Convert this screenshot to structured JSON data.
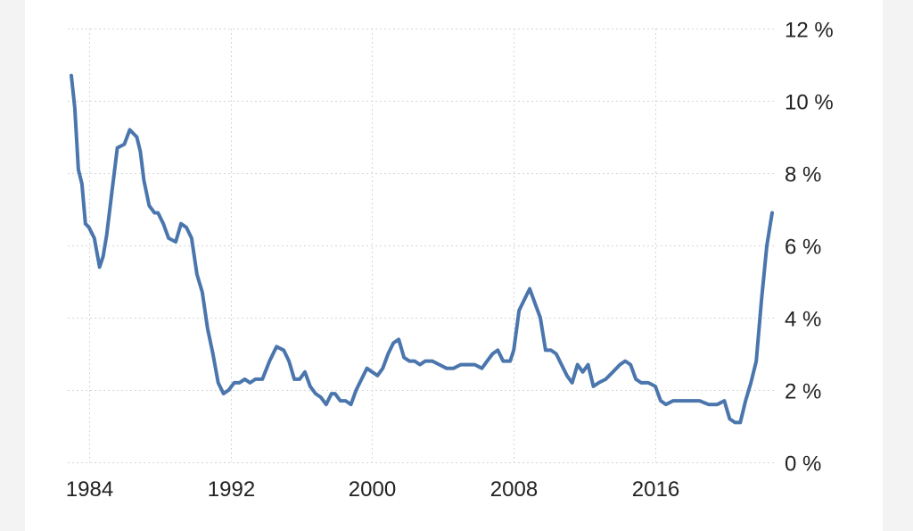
{
  "chart_data": {
    "type": "line",
    "title": "",
    "xlabel": "",
    "ylabel": "",
    "xlim": [
      1982.8,
      2022.7
    ],
    "ylim": [
      0,
      12
    ],
    "x_ticks": [
      {
        "value": 1984,
        "label": "1984"
      },
      {
        "value": 1992,
        "label": "1992"
      },
      {
        "value": 2000,
        "label": "2000"
      },
      {
        "value": 2008,
        "label": "2008"
      },
      {
        "value": 2016,
        "label": "2016"
      }
    ],
    "y_ticks": [
      {
        "value": 0,
        "label": "0 %"
      },
      {
        "value": 2,
        "label": "2 %"
      },
      {
        "value": 4,
        "label": "4 %"
      },
      {
        "value": 6,
        "label": "6 %"
      },
      {
        "value": 8,
        "label": "8 %"
      },
      {
        "value": 10,
        "label": "10 %"
      },
      {
        "value": 12,
        "label": "12 %"
      }
    ],
    "y_axis_side": "right",
    "grid": true,
    "legend": false,
    "color": "#4a76ad",
    "series": [
      {
        "x": [
          1983.0,
          1983.2,
          1983.4,
          1983.6,
          1983.8,
          1984.0,
          1984.3,
          1984.6,
          1984.8,
          1985.0,
          1985.3,
          1985.6,
          1986.0,
          1986.3,
          1986.7,
          1986.9,
          1987.1,
          1987.4,
          1987.7,
          1987.9,
          1988.2,
          1988.5,
          1988.9,
          1989.2,
          1989.5,
          1989.8,
          1990.1,
          1990.4,
          1990.7,
          1991.0,
          1991.3,
          1991.6,
          1991.9,
          1992.2,
          1992.5,
          1992.8,
          1993.1,
          1993.4,
          1993.8,
          1994.2,
          1994.6,
          1995.0,
          1995.3,
          1995.6,
          1995.9,
          1996.2,
          1996.5,
          1996.8,
          1997.1,
          1997.4,
          1997.7,
          1997.9,
          1998.2,
          1998.5,
          1998.8,
          1999.1,
          1999.4,
          1999.7,
          2000.0,
          2000.3,
          2000.6,
          2000.9,
          2001.2,
          2001.5,
          2001.8,
          2002.1,
          2002.4,
          2002.7,
          2003.0,
          2003.4,
          2003.8,
          2004.2,
          2004.6,
          2005.0,
          2005.4,
          2005.8,
          2006.2,
          2006.5,
          2006.8,
          2007.1,
          2007.4,
          2007.8,
          2008.0,
          2008.3,
          2008.6,
          2008.9,
          2009.2,
          2009.5,
          2009.8,
          2010.1,
          2010.4,
          2010.7,
          2011.0,
          2011.3,
          2011.6,
          2011.9,
          2012.2,
          2012.5,
          2012.8,
          2013.2,
          2013.6,
          2014.0,
          2014.3,
          2014.6,
          2014.9,
          2015.2,
          2015.6,
          2016.0,
          2016.3,
          2016.6,
          2017.0,
          2017.5,
          2018.0,
          2018.5,
          2019.0,
          2019.5,
          2019.9,
          2020.2,
          2020.5,
          2020.8,
          2021.1,
          2021.4,
          2021.7,
          2022.0,
          2022.3,
          2022.6
        ],
        "values": [
          10.7,
          9.8,
          8.1,
          7.7,
          6.6,
          6.5,
          6.2,
          5.4,
          5.7,
          6.3,
          7.5,
          8.7,
          8.8,
          9.2,
          9.0,
          8.6,
          7.8,
          7.1,
          6.9,
          6.9,
          6.6,
          6.2,
          6.1,
          6.6,
          6.5,
          6.2,
          5.2,
          4.7,
          3.7,
          3.0,
          2.2,
          1.9,
          2.0,
          2.2,
          2.2,
          2.3,
          2.2,
          2.3,
          2.3,
          2.8,
          3.2,
          3.1,
          2.8,
          2.3,
          2.3,
          2.5,
          2.1,
          1.9,
          1.8,
          1.6,
          1.9,
          1.9,
          1.7,
          1.7,
          1.6,
          2.0,
          2.3,
          2.6,
          2.5,
          2.4,
          2.6,
          3.0,
          3.3,
          3.4,
          2.9,
          2.8,
          2.8,
          2.7,
          2.8,
          2.8,
          2.7,
          2.6,
          2.6,
          2.7,
          2.7,
          2.7,
          2.6,
          2.8,
          3.0,
          3.1,
          2.8,
          2.8,
          3.1,
          4.2,
          4.5,
          4.8,
          4.4,
          4.0,
          3.1,
          3.1,
          3.0,
          2.7,
          2.4,
          2.2,
          2.7,
          2.5,
          2.7,
          2.1,
          2.2,
          2.3,
          2.5,
          2.7,
          2.8,
          2.7,
          2.3,
          2.2,
          2.2,
          2.1,
          1.7,
          1.6,
          1.7,
          1.7,
          1.7,
          1.7,
          1.6,
          1.6,
          1.7,
          1.2,
          1.1,
          1.1,
          1.7,
          2.2,
          2.8,
          4.5,
          6.0,
          6.9
        ]
      }
    ]
  }
}
